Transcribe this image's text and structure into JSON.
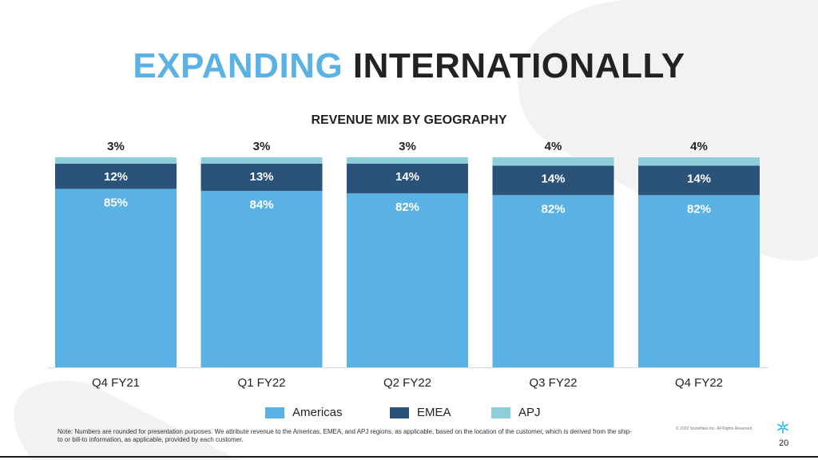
{
  "slide": {
    "title_accent": "EXPANDING",
    "title_rest": "INTERNATIONALLY",
    "note": "Note: Numbers are rounded for presentation purposes. We attribute revenue to the Americas, EMEA, and APJ regions, as applicable, based on the location of the customer, which is derived from the ship-to or bill-to information, as applicable, provided by each customer.",
    "copyright": "© 2022 Snowflake Inc. All Rights Reserved.",
    "page_number": "20",
    "colors": {
      "accent": "#5ab1e3",
      "background_shape": "#f2f2f2"
    }
  },
  "chart_data": {
    "type": "bar",
    "stacked": true,
    "title": "REVENUE MIX BY GEOGRAPHY",
    "categories": [
      "Q4 FY21",
      "Q1 FY22",
      "Q2 FY22",
      "Q3 FY22",
      "Q4 FY22"
    ],
    "series": [
      {
        "name": "Americas",
        "values": [
          85,
          84,
          82,
          82,
          82
        ],
        "color": "#5ab1e3",
        "labels": [
          "85%",
          "84%",
          "82%",
          "82%",
          "82%"
        ]
      },
      {
        "name": "EMEA",
        "values": [
          12,
          13,
          14,
          14,
          14
        ],
        "color": "#2b5379",
        "labels": [
          "12%",
          "13%",
          "14%",
          "14%",
          "14%"
        ]
      },
      {
        "name": "APJ",
        "values": [
          3,
          3,
          3,
          4,
          4
        ],
        "color": "#8ccfdb",
        "labels": [
          "3%",
          "3%",
          "3%",
          "4%",
          "4%"
        ]
      }
    ],
    "ylim": [
      0,
      100
    ],
    "unit": "%",
    "legend_position": "bottom",
    "grid": false
  }
}
